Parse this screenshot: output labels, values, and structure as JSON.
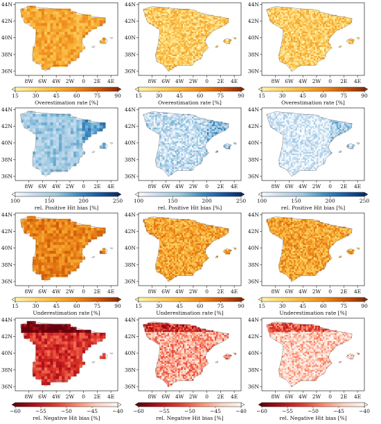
{
  "axes": {
    "lat_ticks": [
      "44N",
      "42N",
      "40N",
      "38N",
      "36N"
    ],
    "lon_ticks": [
      "8W",
      "6W",
      "4W",
      "2W",
      "0",
      "2E",
      "4E"
    ]
  },
  "rows": [
    {
      "name": "overestimation",
      "colorbar_label": "Overestimation rate [%]",
      "ticks": [
        "15",
        "30",
        "45",
        "60",
        "75",
        "90"
      ],
      "colors": [
        "#fff3b0",
        "#fdd46a",
        "#f9b43a",
        "#ee8a1a",
        "#cf5a08",
        "#8f2d04"
      ],
      "levels": [
        0.45,
        0.25,
        0.25
      ]
    },
    {
      "name": "positive-hit-bias",
      "colorbar_label": "rel. Positive Hit bias [%]",
      "ticks": [
        "100",
        "150",
        "200",
        "250"
      ],
      "colors": [
        "#f7fbff",
        "#c6dbef",
        "#9ecae1",
        "#4292c6",
        "#1c5ea8",
        "#08306b"
      ],
      "levels": [
        0.35,
        0.22,
        0.12
      ]
    },
    {
      "name": "underestimation",
      "colorbar_label": "Underestimation rate [%]",
      "ticks": [
        "15",
        "30",
        "45",
        "60",
        "75",
        "90"
      ],
      "colors": [
        "#fff3b0",
        "#fdd46a",
        "#f9b43a",
        "#ee8a1a",
        "#cf5a08",
        "#8f2d04"
      ],
      "levels": [
        0.62,
        0.45,
        0.45
      ]
    },
    {
      "name": "negative-hit-bias",
      "colorbar_label": "rel. Negative Hit bias [%]",
      "ticks": [
        "−60",
        "−55",
        "−50",
        "−45",
        "−40"
      ],
      "colors": [
        "#67000d",
        "#b41219",
        "#e33b2e",
        "#fb8a6a",
        "#fdd0c0",
        "#fff5f0"
      ],
      "levels": [
        0.35,
        0.68,
        0.82
      ]
    }
  ],
  "column_resolution": [
    "coarse",
    "fine",
    "fine"
  ]
}
